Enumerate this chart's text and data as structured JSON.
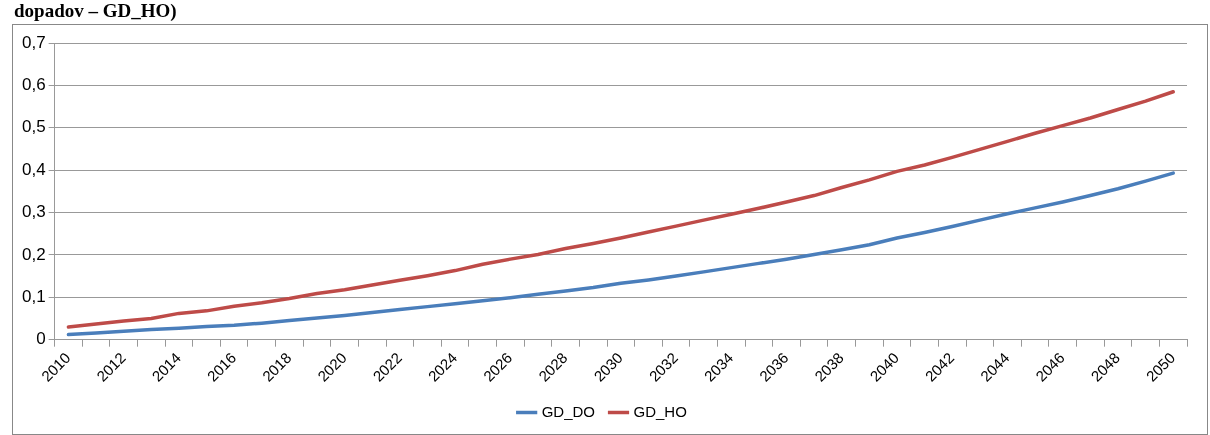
{
  "chart_data": {
    "type": "line",
    "title": "dopadov – GD_HO)",
    "categories": [
      "2010",
      null,
      "2012",
      null,
      "2014",
      null,
      "2016",
      null,
      "2018",
      null,
      "2020",
      null,
      "2022",
      null,
      "2024",
      null,
      "2026",
      null,
      "2028",
      null,
      "2030",
      null,
      "2032",
      null,
      "2034",
      null,
      "2036",
      null,
      "2038",
      null,
      "2040",
      null,
      "2042",
      null,
      "2044",
      null,
      "2046",
      null,
      "2048",
      null,
      "2050"
    ],
    "series": [
      {
        "name": "GD_DO",
        "color": "#4a7ebb",
        "values": [
          0.012,
          0.016,
          0.02,
          0.024,
          0.027,
          0.031,
          0.034,
          0.039,
          0.045,
          0.051,
          0.057,
          0.064,
          0.071,
          0.078,
          0.085,
          0.092,
          0.099,
          0.107,
          0.115,
          0.123,
          0.133,
          0.141,
          0.15,
          0.16,
          0.17,
          0.18,
          0.19,
          0.201,
          0.212,
          0.224,
          0.24,
          0.253,
          0.267,
          0.282,
          0.297,
          0.311,
          0.325,
          0.34,
          0.356,
          0.374,
          0.393
        ]
      },
      {
        "name": "GD_HO",
        "color": "#be4b48",
        "values": [
          0.03,
          0.037,
          0.044,
          0.05,
          0.062,
          0.068,
          0.079,
          0.087,
          0.097,
          0.109,
          0.118,
          0.129,
          0.14,
          0.151,
          0.163,
          0.178,
          0.19,
          0.201,
          0.215,
          0.227,
          0.24,
          0.254,
          0.268,
          0.282,
          0.296,
          0.31,
          0.325,
          0.34,
          0.359,
          0.377,
          0.397,
          0.412,
          0.43,
          0.449,
          0.468,
          0.487,
          0.505,
          0.523,
          0.543,
          0.563,
          0.585
        ]
      }
    ],
    "ylim": [
      0,
      0.7
    ],
    "yticks": [
      0,
      {
        "value": 0.1,
        "label": "0,1"
      },
      {
        "value": 0.2,
        "label": "0,2"
      },
      {
        "value": 0.3,
        "label": "0,3"
      },
      {
        "value": 0.4,
        "label": "0,4"
      },
      {
        "value": 0.5,
        "label": "0,5"
      },
      {
        "value": 0.6,
        "label": "0,6"
      },
      {
        "value": 0.7,
        "label": "0,7"
      }
    ],
    "grid": "y",
    "legend": "bottom",
    "marker": "none",
    "line_style": "solid"
  }
}
